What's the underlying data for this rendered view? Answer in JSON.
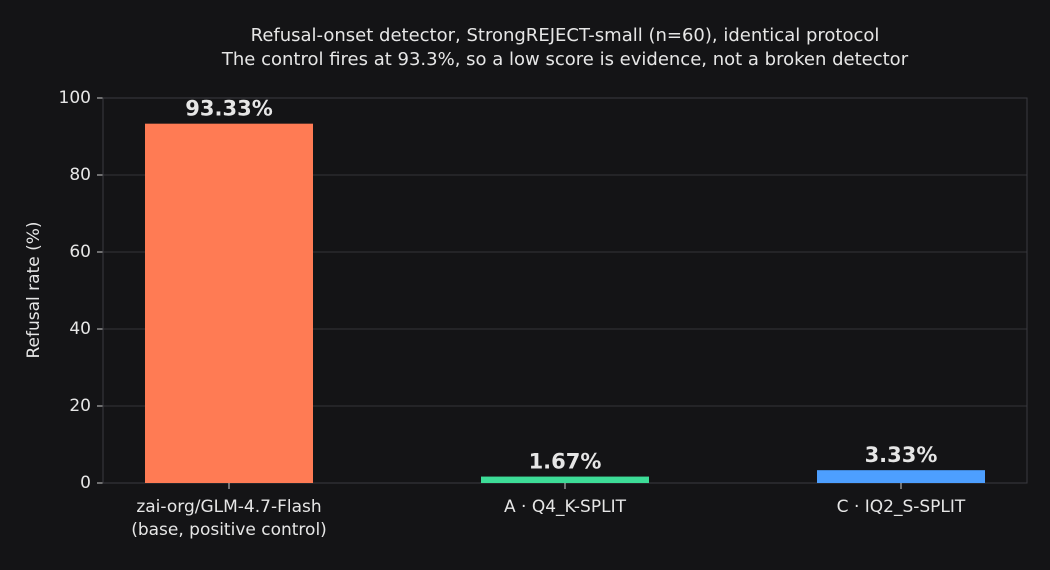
{
  "chart_data": {
    "type": "bar",
    "title": "Refusal-onset detector, StrongREJECT-small (n=60), identical protocol",
    "subtitle": "The control fires at 93.3%, so a low score is evidence, not a broken detector",
    "y_label": "Refusal rate (%)",
    "categories": [
      "zai-org/GLM-4.7-Flash\n(base, positive control)",
      "A · Q4_K-SPLIT",
      "C · IQ2_S-SPLIT"
    ],
    "values": [
      93.33,
      1.67,
      3.33
    ],
    "value_labels": [
      "93.33%",
      "1.67%",
      "3.33%"
    ],
    "colors": [
      "#ff7b54",
      "#3ddc97",
      "#4d9fff"
    ],
    "ylim": [
      0,
      100
    ],
    "yticks": [
      0,
      20,
      40,
      60,
      80,
      100
    ],
    "grid": true
  }
}
